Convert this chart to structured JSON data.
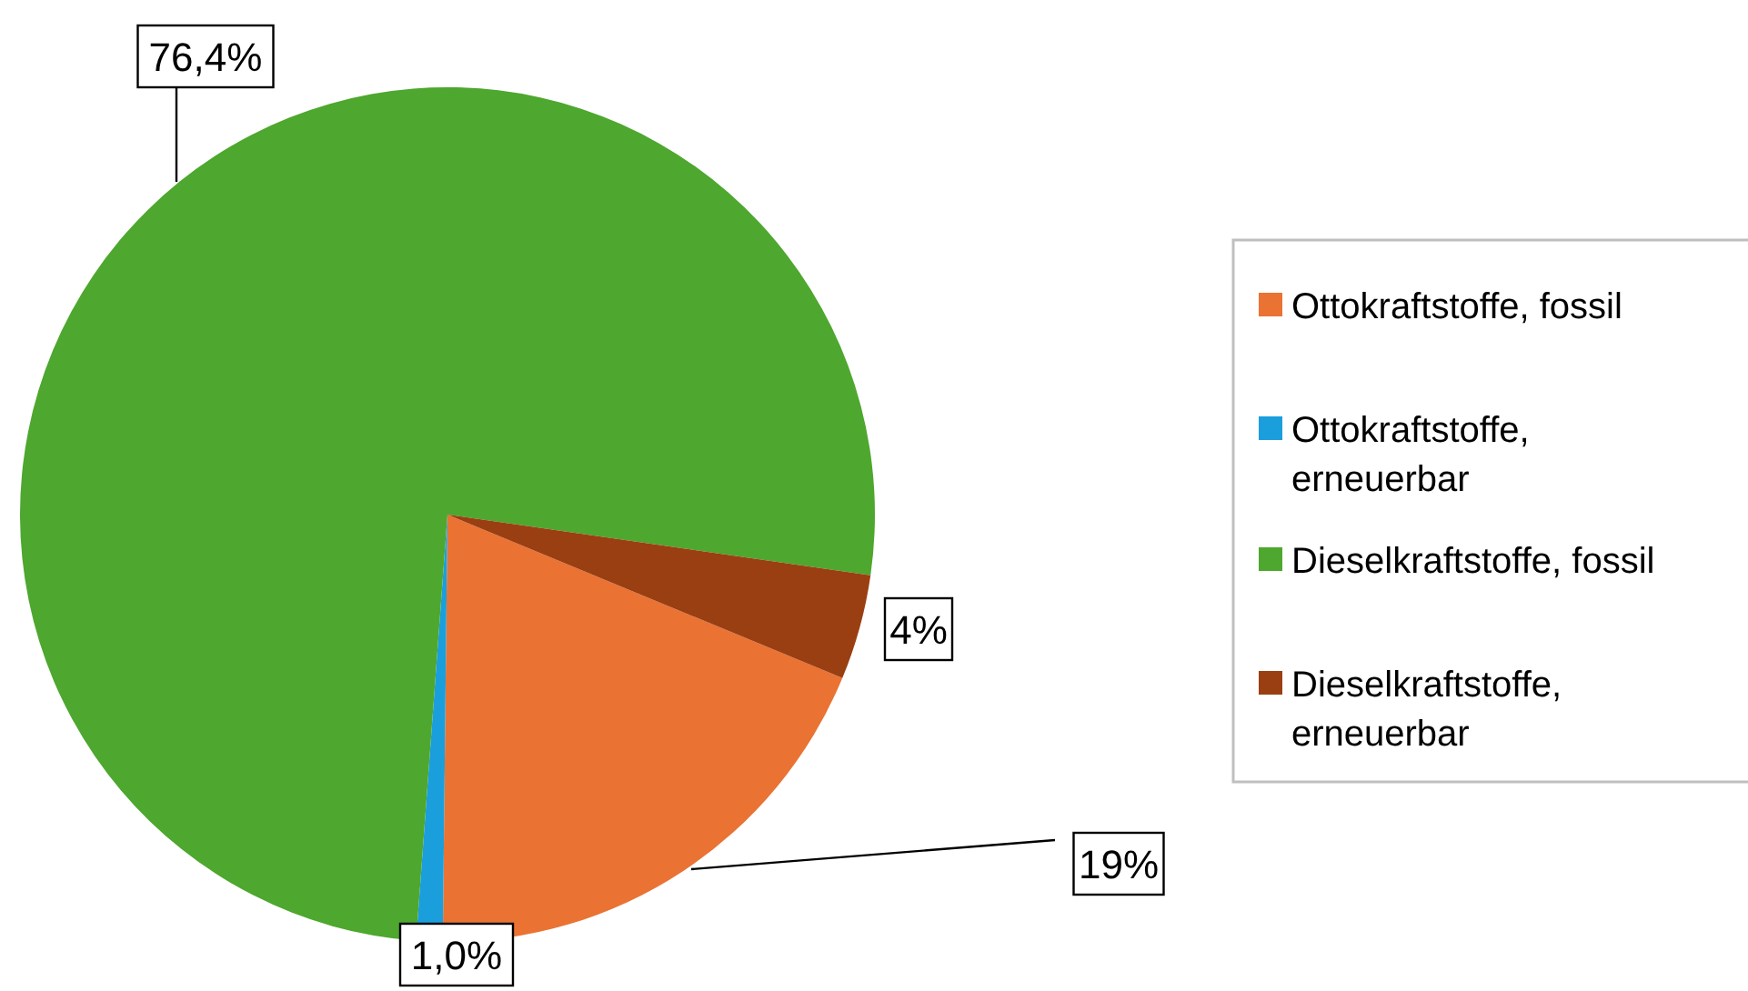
{
  "chart_data": {
    "type": "pie",
    "categories": [
      "Ottokraftstoffe, fossil",
      "Ottokraftstoffe, erneuerbar",
      "Dieselkraftstoffe, fossil",
      "Dieselkraftstoffe, erneuerbar"
    ],
    "values": [
      19,
      1.0,
      76.4,
      4
    ],
    "value_labels": [
      "19%",
      "1,0%",
      "76,4%",
      "4%"
    ],
    "colors": [
      "#ea7233",
      "#1a9fdc",
      "#4ea72e",
      "#9a3f12"
    ],
    "legend": "right"
  }
}
